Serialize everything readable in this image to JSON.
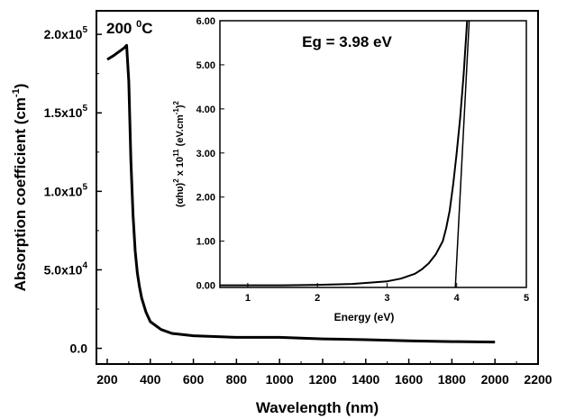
{
  "chart_data": [
    {
      "type": "line",
      "xlabel": "Wavelength (nm)",
      "ylabel_main": "Absorption coefficient (cm",
      "ylabel_sup": "-1",
      "ylabel_close": ")",
      "annotation_main": "200 ",
      "annotation_sup": "0",
      "annotation_tail": "C",
      "xlim": [
        150,
        2200
      ],
      "ylim": [
        -10000,
        215000
      ],
      "xticks": [
        200,
        400,
        600,
        800,
        1000,
        1200,
        1400,
        1600,
        1800,
        2000,
        2200
      ],
      "yticks": [
        {
          "value": 0,
          "label": "0.0"
        },
        {
          "value": 50000,
          "label": "5.0x10",
          "exp": "4"
        },
        {
          "value": 100000,
          "label": "1.0x10",
          "exp": "5"
        },
        {
          "value": 150000,
          "label": "1.5x10",
          "exp": "5"
        },
        {
          "value": 200000,
          "label": "2.0x10",
          "exp": "5"
        }
      ],
      "series": [
        {
          "x": [
            200,
            230,
            260,
            280,
            290,
            300,
            310,
            320,
            330,
            340,
            350,
            360,
            380,
            400,
            450,
            500,
            600,
            800,
            1000,
            1200,
            1400,
            1600,
            1800,
            2000
          ],
          "y": [
            184000,
            186500,
            189500,
            191500,
            193000,
            170000,
            120000,
            85000,
            62000,
            48000,
            39000,
            32000,
            23000,
            17000,
            12000,
            9500,
            8000,
            7000,
            7000,
            6000,
            5500,
            4800,
            4300,
            4000
          ]
        }
      ]
    },
    {
      "type": "line",
      "title": "Eg = 3.98 eV",
      "xlabel": "Energy (eV)",
      "ylabel_a": "(αhυ)",
      "ylabel_b": "2",
      "ylabel_c": " x 10",
      "ylabel_d": "11",
      "ylabel_e": " (eV.cm",
      "ylabel_f": "-1",
      "ylabel_g": ")",
      "ylabel_h": "2",
      "xlim": [
        0.6,
        5
      ],
      "ylim": [
        -0.05,
        6
      ],
      "xticks": [
        1,
        2,
        3,
        4,
        5
      ],
      "yticks": [
        "0.00",
        "1.00",
        "2.00",
        "3.00",
        "4.00",
        "5.00",
        "6.00"
      ],
      "series": [
        {
          "x": [
            0.6,
            1.0,
            1.5,
            2.0,
            2.5,
            3.0,
            3.2,
            3.4,
            3.5,
            3.6,
            3.7,
            3.8,
            3.85,
            3.9,
            3.95,
            4.0,
            4.05,
            4.1,
            4.15
          ],
          "y": [
            0.0,
            0.0,
            0.0,
            0.01,
            0.03,
            0.09,
            0.15,
            0.26,
            0.36,
            0.5,
            0.7,
            1.0,
            1.3,
            1.7,
            2.3,
            3.0,
            3.8,
            4.8,
            6.0
          ]
        },
        {
          "x": [
            3.98,
            4.18
          ],
          "y": [
            -0.05,
            6.0
          ]
        }
      ]
    }
  ]
}
